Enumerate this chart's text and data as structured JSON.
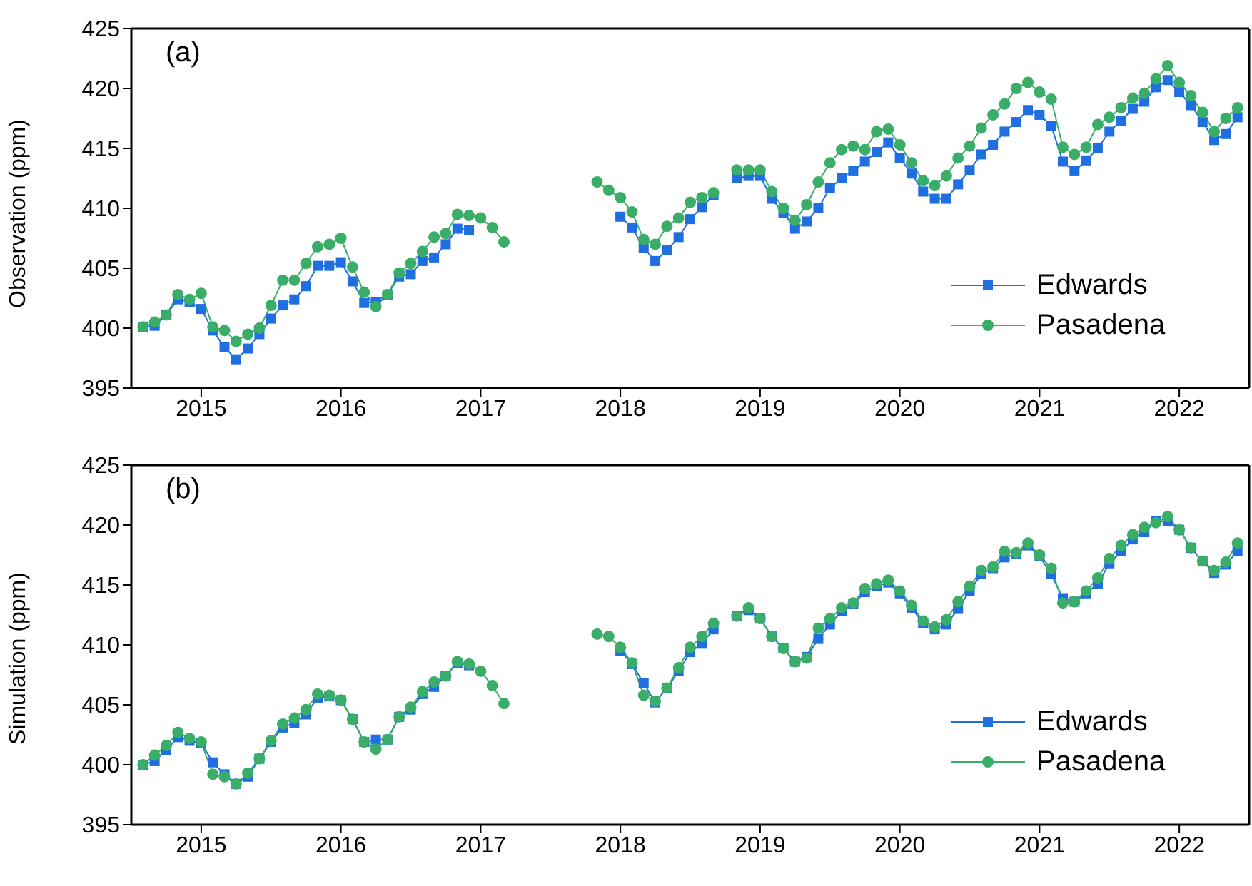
{
  "chart_data": [
    {
      "type": "line",
      "ylabel": "Observation (ppm)",
      "annotations": [
        "(a)"
      ],
      "xlim": [
        "2014-07",
        "2022-07"
      ],
      "xticks": [
        "2015",
        "2016",
        "2017",
        "2018",
        "2019",
        "2020",
        "2021",
        "2022"
      ],
      "ylim": [
        395,
        425
      ],
      "yticks": [
        395,
        400,
        405,
        410,
        415,
        420,
        425
      ],
      "legend": "bottom right",
      "line_style": "solid",
      "x": [
        "2014-08",
        "2014-09",
        "2014-10",
        "2014-11",
        "2014-12",
        "2015-01",
        "2015-02",
        "2015-03",
        "2015-04",
        "2015-05",
        "2015-06",
        "2015-07",
        "2015-08",
        "2015-09",
        "2015-10",
        "2015-11",
        "2015-12",
        "2016-01",
        "2016-02",
        "2016-03",
        "2016-04",
        "2016-05",
        "2016-06",
        "2016-07",
        "2016-08",
        "2016-09",
        "2016-10",
        "2016-11",
        "2016-12",
        "2017-01",
        "2017-02",
        "2017-03",
        "2017-04",
        "2017-05",
        "2017-06",
        "2017-07",
        "2017-08",
        "2017-09",
        "2017-10",
        "2017-11",
        "2017-12",
        "2018-01",
        "2018-02",
        "2018-03",
        "2018-04",
        "2018-05",
        "2018-06",
        "2018-07",
        "2018-08",
        "2018-09",
        "2018-10",
        "2018-11",
        "2018-12",
        "2019-01",
        "2019-02",
        "2019-03",
        "2019-04",
        "2019-05",
        "2019-06",
        "2019-07",
        "2019-08",
        "2019-09",
        "2019-10",
        "2019-11",
        "2019-12",
        "2020-01",
        "2020-02",
        "2020-03",
        "2020-04",
        "2020-05",
        "2020-06",
        "2020-07",
        "2020-08",
        "2020-09",
        "2020-10",
        "2020-11",
        "2020-12",
        "2021-01",
        "2021-02",
        "2021-03",
        "2021-04",
        "2021-05",
        "2021-06",
        "2021-07",
        "2021-08",
        "2021-09",
        "2021-10",
        "2021-11",
        "2021-12",
        "2022-01",
        "2022-02",
        "2022-03",
        "2022-04",
        "2022-05",
        "2022-06"
      ],
      "series": [
        {
          "name": "Edwards",
          "color": "#1f6fe0",
          "marker": "square",
          "values": [
            400.1,
            400.2,
            401.1,
            402.4,
            402.2,
            401.6,
            399.8,
            398.4,
            397.4,
            398.3,
            399.5,
            400.8,
            401.9,
            402.4,
            403.5,
            405.2,
            405.2,
            405.5,
            403.9,
            402.1,
            402.2,
            402.8,
            404.3,
            404.5,
            405.6,
            405.9,
            407.0,
            408.3,
            408.2,
            null,
            null,
            null,
            null,
            null,
            null,
            null,
            null,
            null,
            null,
            null,
            null,
            409.3,
            408.4,
            406.7,
            405.6,
            406.5,
            407.6,
            409.1,
            410.1,
            411.1,
            null,
            412.5,
            412.7,
            412.7,
            410.8,
            409.6,
            408.3,
            408.9,
            410.0,
            411.7,
            412.5,
            413.1,
            413.9,
            414.7,
            415.5,
            414.2,
            412.9,
            411.4,
            410.8,
            410.8,
            412.0,
            413.2,
            414.5,
            415.3,
            416.4,
            417.2,
            418.2,
            417.8,
            416.9,
            413.9,
            413.1,
            414.0,
            415.0,
            416.4,
            417.3,
            418.3,
            418.9,
            420.1,
            420.7,
            419.7,
            418.6,
            417.2,
            415.7,
            416.2,
            417.6
          ]
        },
        {
          "name": "Pasadena",
          "color": "#3aae68",
          "marker": "circle",
          "values": [
            400.1,
            400.5,
            401.1,
            402.8,
            402.4,
            402.9,
            400.1,
            399.8,
            398.9,
            399.5,
            400.0,
            401.9,
            404.0,
            404.0,
            405.4,
            406.8,
            407.0,
            407.5,
            405.1,
            403.0,
            401.8,
            402.8,
            404.6,
            405.4,
            406.4,
            407.6,
            407.9,
            409.5,
            409.4,
            409.2,
            408.4,
            407.2,
            null,
            null,
            null,
            null,
            null,
            null,
            null,
            412.2,
            411.5,
            410.9,
            409.7,
            407.4,
            407.0,
            408.5,
            409.2,
            410.5,
            410.9,
            411.3,
            null,
            413.2,
            413.2,
            413.2,
            411.4,
            410.0,
            409.0,
            410.3,
            412.2,
            413.8,
            414.9,
            415.2,
            414.9,
            416.4,
            416.6,
            415.3,
            413.8,
            412.3,
            411.9,
            412.7,
            414.2,
            415.2,
            416.7,
            417.8,
            418.7,
            420.0,
            420.5,
            419.7,
            419.1,
            415.1,
            414.5,
            415.1,
            417.0,
            417.6,
            418.4,
            419.2,
            419.6,
            420.8,
            421.9,
            420.5,
            419.4,
            418.0,
            416.4,
            417.5,
            418.4
          ]
        }
      ]
    },
    {
      "type": "line",
      "ylabel": "Simulation (ppm)",
      "annotations": [
        "(b)"
      ],
      "xlim": [
        "2014-07",
        "2022-07"
      ],
      "xticks": [
        "2015",
        "2016",
        "2017",
        "2018",
        "2019",
        "2020",
        "2021",
        "2022"
      ],
      "ylim": [
        395,
        425
      ],
      "yticks": [
        395,
        400,
        405,
        410,
        415,
        420,
        425
      ],
      "legend": "bottom right",
      "line_style": "solid",
      "x": [
        "2014-08",
        "2014-09",
        "2014-10",
        "2014-11",
        "2014-12",
        "2015-01",
        "2015-02",
        "2015-03",
        "2015-04",
        "2015-05",
        "2015-06",
        "2015-07",
        "2015-08",
        "2015-09",
        "2015-10",
        "2015-11",
        "2015-12",
        "2016-01",
        "2016-02",
        "2016-03",
        "2016-04",
        "2016-05",
        "2016-06",
        "2016-07",
        "2016-08",
        "2016-09",
        "2016-10",
        "2016-11",
        "2016-12",
        "2017-01",
        "2017-02",
        "2017-03",
        "2017-04",
        "2017-05",
        "2017-06",
        "2017-07",
        "2017-08",
        "2017-09",
        "2017-10",
        "2017-11",
        "2017-12",
        "2018-01",
        "2018-02",
        "2018-03",
        "2018-04",
        "2018-05",
        "2018-06",
        "2018-07",
        "2018-08",
        "2018-09",
        "2018-10",
        "2018-11",
        "2018-12",
        "2019-01",
        "2019-02",
        "2019-03",
        "2019-04",
        "2019-05",
        "2019-06",
        "2019-07",
        "2019-08",
        "2019-09",
        "2019-10",
        "2019-11",
        "2019-12",
        "2020-01",
        "2020-02",
        "2020-03",
        "2020-04",
        "2020-05",
        "2020-06",
        "2020-07",
        "2020-08",
        "2020-09",
        "2020-10",
        "2020-11",
        "2020-12",
        "2021-01",
        "2021-02",
        "2021-03",
        "2021-04",
        "2021-05",
        "2021-06",
        "2021-07",
        "2021-08",
        "2021-09",
        "2021-10",
        "2021-11",
        "2021-12",
        "2022-01",
        "2022-02",
        "2022-03",
        "2022-04",
        "2022-05",
        "2022-06"
      ],
      "series": [
        {
          "name": "Edwards",
          "color": "#1f6fe0",
          "marker": "square",
          "values": [
            400.0,
            400.3,
            401.2,
            402.3,
            402.0,
            401.8,
            400.2,
            399.2,
            398.4,
            399.0,
            400.5,
            401.9,
            403.1,
            403.5,
            404.2,
            405.6,
            405.7,
            405.4,
            403.8,
            401.9,
            402.1,
            402.1,
            404.0,
            404.6,
            405.9,
            406.5,
            407.4,
            408.5,
            408.3,
            null,
            null,
            null,
            null,
            null,
            null,
            null,
            null,
            null,
            null,
            null,
            null,
            409.5,
            408.4,
            406.8,
            405.2,
            406.4,
            407.8,
            409.4,
            410.1,
            411.3,
            null,
            412.4,
            412.9,
            412.2,
            410.7,
            409.7,
            408.6,
            409.0,
            410.5,
            411.7,
            412.8,
            413.4,
            414.4,
            414.9,
            415.2,
            414.3,
            413.1,
            411.8,
            411.3,
            411.7,
            413.0,
            414.5,
            415.9,
            416.4,
            417.3,
            417.6,
            418.3,
            417.4,
            415.9,
            413.9,
            413.6,
            414.3,
            415.1,
            416.8,
            417.8,
            418.8,
            419.4,
            420.3,
            420.3,
            419.6,
            418.1,
            417.0,
            416.0,
            416.7,
            417.8
          ]
        },
        {
          "name": "Pasadena",
          "color": "#3aae68",
          "marker": "circle",
          "values": [
            400.0,
            400.8,
            401.6,
            402.7,
            402.2,
            401.9,
            399.2,
            399.0,
            398.4,
            399.3,
            400.5,
            402.0,
            403.4,
            403.9,
            404.6,
            405.9,
            405.8,
            405.4,
            403.8,
            401.9,
            401.3,
            402.1,
            404.0,
            404.8,
            406.1,
            406.9,
            407.4,
            408.6,
            408.4,
            407.8,
            406.6,
            405.1,
            null,
            null,
            null,
            null,
            null,
            null,
            null,
            410.9,
            410.7,
            409.8,
            408.5,
            405.8,
            405.3,
            406.4,
            408.1,
            409.8,
            410.7,
            411.8,
            null,
            412.4,
            413.1,
            412.2,
            410.7,
            409.7,
            408.6,
            408.9,
            411.4,
            412.2,
            413.1,
            413.5,
            414.7,
            415.1,
            415.4,
            414.5,
            413.3,
            412.0,
            411.5,
            412.1,
            413.6,
            414.9,
            416.2,
            416.5,
            417.8,
            417.7,
            418.5,
            417.5,
            416.4,
            413.5,
            413.6,
            414.5,
            415.6,
            417.2,
            418.3,
            419.2,
            419.8,
            420.2,
            420.7,
            419.6,
            418.1,
            417.0,
            416.2,
            416.9,
            418.5
          ]
        }
      ]
    }
  ]
}
